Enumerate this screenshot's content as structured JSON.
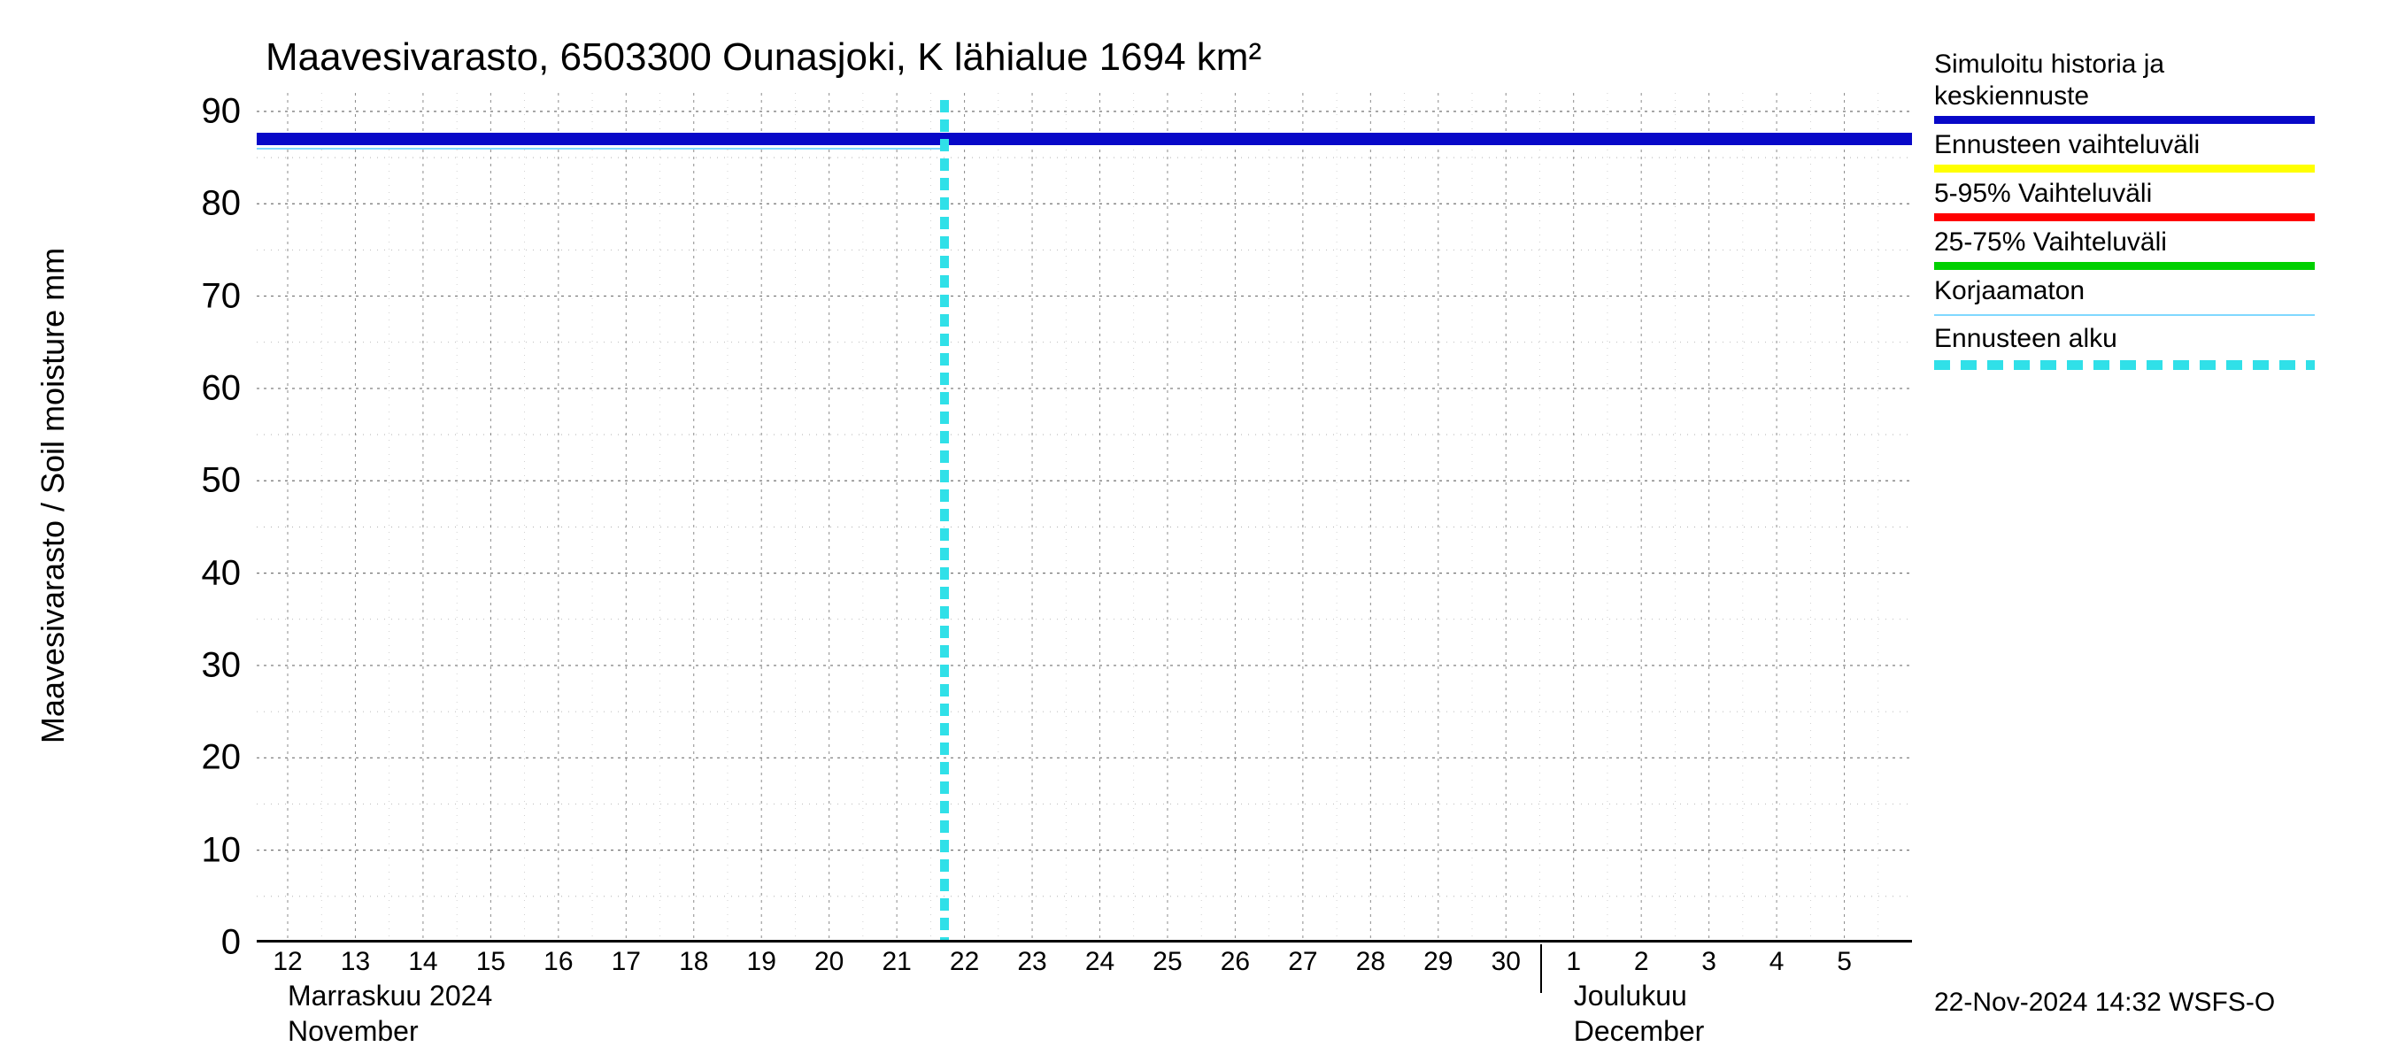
{
  "chart": {
    "type": "line",
    "title": "Maavesivarasto, 6503300 Ounasjoki, K lähialue 1694 km²",
    "y_axis": {
      "label": "Maavesivarasto / Soil moisture   mm",
      "min": 0,
      "max": 92,
      "ticks": [
        0,
        10,
        20,
        30,
        40,
        50,
        60,
        70,
        80,
        90
      ],
      "minor_step": 5,
      "label_fontsize": 36,
      "tick_fontsize": 40
    },
    "x_axis": {
      "start_day_index": 0,
      "end_day_index": 24,
      "ticks": [
        {
          "i": 0,
          "label": "12"
        },
        {
          "i": 1,
          "label": "13"
        },
        {
          "i": 2,
          "label": "14"
        },
        {
          "i": 3,
          "label": "15"
        },
        {
          "i": 4,
          "label": "16"
        },
        {
          "i": 5,
          "label": "17"
        },
        {
          "i": 6,
          "label": "18"
        },
        {
          "i": 7,
          "label": "19"
        },
        {
          "i": 8,
          "label": "20"
        },
        {
          "i": 9,
          "label": "21"
        },
        {
          "i": 10,
          "label": "22"
        },
        {
          "i": 11,
          "label": "23"
        },
        {
          "i": 12,
          "label": "24"
        },
        {
          "i": 13,
          "label": "25"
        },
        {
          "i": 14,
          "label": "26"
        },
        {
          "i": 15,
          "label": "27"
        },
        {
          "i": 16,
          "label": "28"
        },
        {
          "i": 17,
          "label": "29"
        },
        {
          "i": 18,
          "label": "30"
        },
        {
          "i": 19,
          "label": "1"
        },
        {
          "i": 20,
          "label": "2"
        },
        {
          "i": 21,
          "label": "3"
        },
        {
          "i": 22,
          "label": "4"
        },
        {
          "i": 23,
          "label": "5"
        }
      ],
      "month_labels": [
        {
          "i": 0,
          "line1": "Marraskuu 2024",
          "line2": "November",
          "sep": false
        },
        {
          "i": 19,
          "line1": "Joulukuu",
          "line2": "December",
          "sep": true
        }
      ],
      "tick_fontsize": 30
    },
    "series": {
      "main": {
        "value": 87,
        "color": "#0808c8",
        "line_width": 14
      },
      "uncorrected": {
        "value": 86,
        "color": "#80d8ff",
        "line_width": 2,
        "end_index": 9.7
      },
      "forecast_start": {
        "index": 9.7,
        "color": "#30e0e8"
      }
    },
    "background": "#ffffff",
    "grid_color": "#000000"
  },
  "legend": {
    "items": [
      {
        "label": "Simuloitu historia ja keskiennuste",
        "color": "#0808c8",
        "style": "thick"
      },
      {
        "label": "Ennusteen vaihteluväli",
        "color": "#ffff00",
        "style": "thick"
      },
      {
        "label": "5-95% Vaihteluväli",
        "color": "#ff0000",
        "style": "thick"
      },
      {
        "label": "25-75% Vaihteluväli",
        "color": "#00d000",
        "style": "thick"
      },
      {
        "label": "Korjaamaton",
        "color": "#80d8ff",
        "style": "thin"
      },
      {
        "label": "Ennusteen alku",
        "color": "#30e0e8",
        "style": "dashed"
      }
    ]
  },
  "footer": {
    "text": "22-Nov-2024 14:32 WSFS-O"
  }
}
